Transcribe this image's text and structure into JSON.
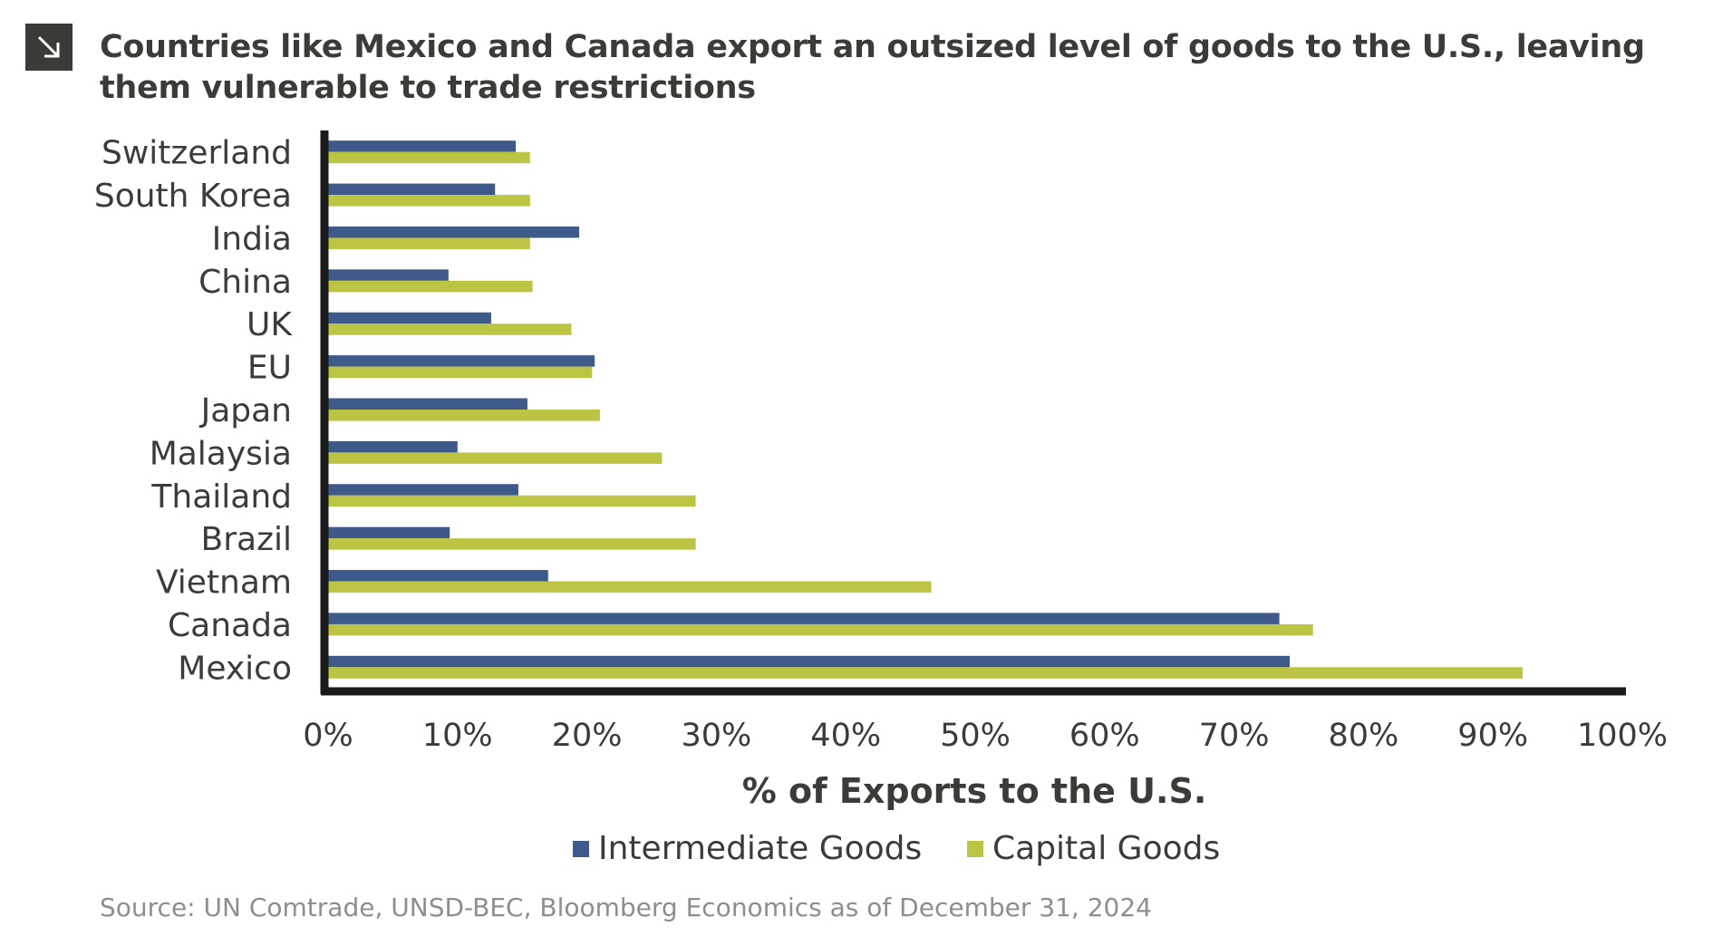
{
  "header": {
    "icon": "arrow-down-right-icon",
    "title": "Countries like Mexico and Canada export an outsized level of goods to the U.S., leaving them vulnerable to trade restrictions"
  },
  "footer": {
    "source": "Source: UN Comtrade, UNSD-BEC, Bloomberg Economics as of December 31, 2024"
  },
  "colors": {
    "intermediate": "#3d5a8a",
    "capital": "#bcc443",
    "axis": "#1a1a1a",
    "text": "#3b3b38"
  },
  "chart_data": {
    "type": "bar",
    "orientation": "horizontal",
    "categories": [
      "Switzerland",
      "South Korea",
      "India",
      "China",
      "UK",
      "EU",
      "Japan",
      "Malaysia",
      "Thailand",
      "Brazil",
      "Vietnam",
      "Canada",
      "Mexico"
    ],
    "series": [
      {
        "name": "Intermediate Goods",
        "values": [
          14.5,
          12.9,
          19.4,
          9.3,
          12.6,
          20.6,
          15.4,
          10.0,
          14.7,
          9.4,
          17.0,
          73.5,
          74.3
        ]
      },
      {
        "name": "Capital Goods",
        "values": [
          15.6,
          15.6,
          15.6,
          15.8,
          18.8,
          20.4,
          21.0,
          25.8,
          28.4,
          28.4,
          46.6,
          76.1,
          92.3
        ]
      }
    ],
    "xlim": [
      0,
      100
    ],
    "xticks": [
      "0%",
      "10%",
      "20%",
      "30%",
      "40%",
      "50%",
      "60%",
      "70%",
      "80%",
      "90%",
      "100%"
    ],
    "xlabel": "% of Exports to the U.S.",
    "ylabel": "",
    "grid": false,
    "legend": "bottom"
  }
}
